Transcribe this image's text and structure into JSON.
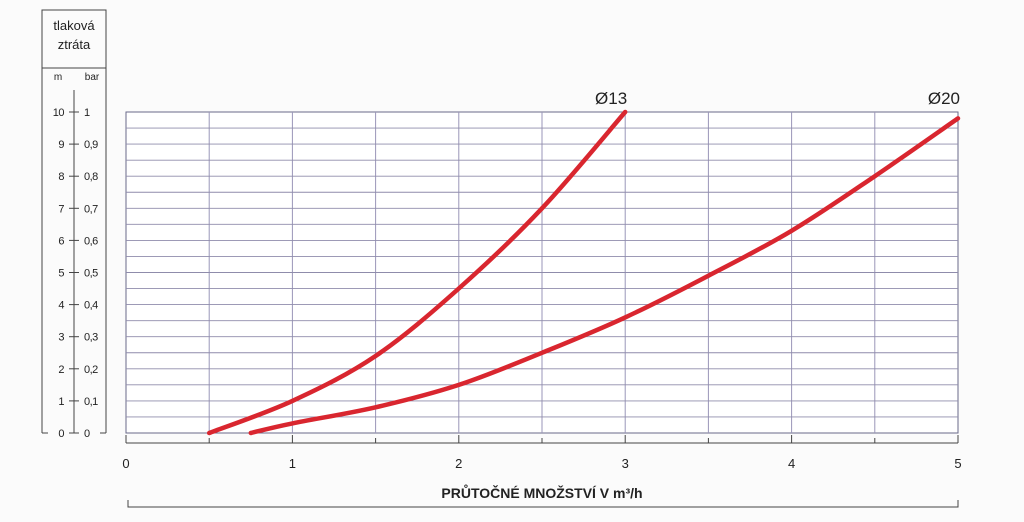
{
  "chart_data": {
    "type": "line",
    "ylabel_lines": [
      "tlaková",
      "ztráta"
    ],
    "y_units": [
      "m",
      "bar"
    ],
    "y_ticks_m": [
      "0",
      "1",
      "2",
      "3",
      "4",
      "5",
      "6",
      "7",
      "8",
      "9",
      "10"
    ],
    "y_ticks_bar": [
      "0",
      "0,1",
      "0,2",
      "0,3",
      "0,4",
      "0,5",
      "0,6",
      "0,7",
      "0,8",
      "0,9",
      "1"
    ],
    "x_ticks": [
      "0",
      "1",
      "2",
      "3",
      "4",
      "5"
    ],
    "xlabel": "PRŮTOČNÉ MNOŽSTVÍ V m³/h",
    "xlim": [
      0,
      5
    ],
    "ylim": [
      0,
      10
    ],
    "grid": true,
    "series": [
      {
        "name": "Ø13",
        "color": "#d9262f",
        "points": [
          [
            0.5,
            0.0
          ],
          [
            1.0,
            1.0
          ],
          [
            1.5,
            2.4
          ],
          [
            2.0,
            4.5
          ],
          [
            2.5,
            7.0
          ],
          [
            3.0,
            10.0
          ]
        ]
      },
      {
        "name": "Ø20",
        "color": "#d9262f",
        "points": [
          [
            0.75,
            0.0
          ],
          [
            1.0,
            0.3
          ],
          [
            1.5,
            0.8
          ],
          [
            2.0,
            1.5
          ],
          [
            2.5,
            2.5
          ],
          [
            3.0,
            3.6
          ],
          [
            3.5,
            4.9
          ],
          [
            4.0,
            6.3
          ],
          [
            4.5,
            8.0
          ],
          [
            5.0,
            9.8
          ]
        ]
      }
    ]
  }
}
